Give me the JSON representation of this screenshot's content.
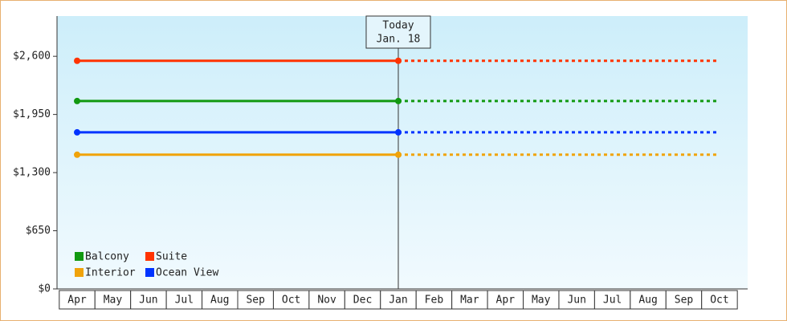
{
  "chart_data": {
    "type": "line",
    "categories": [
      "Apr",
      "May",
      "Jun",
      "Jul",
      "Aug",
      "Sep",
      "Oct",
      "Nov",
      "Dec",
      "Jan",
      "Feb",
      "Mar",
      "Apr",
      "May",
      "Jun",
      "Jul",
      "Aug",
      "Sep",
      "Oct"
    ],
    "series": [
      {
        "name": "Balcony",
        "color": "#119911",
        "values": [
          2100,
          2100,
          2100,
          2100,
          2100,
          2100,
          2100,
          2100,
          2100,
          2100,
          2100,
          2100,
          2100,
          2100,
          2100,
          2100,
          2100,
          2100,
          2100
        ]
      },
      {
        "name": "Suite",
        "color": "#ff3300",
        "values": [
          2550,
          2550,
          2550,
          2550,
          2550,
          2550,
          2550,
          2550,
          2550,
          2550,
          2550,
          2550,
          2550,
          2550,
          2550,
          2550,
          2550,
          2550,
          2550
        ]
      },
      {
        "name": "Interior",
        "color": "#f0a30a",
        "values": [
          1500,
          1500,
          1500,
          1500,
          1500,
          1500,
          1500,
          1500,
          1500,
          1500,
          1500,
          1500,
          1500,
          1500,
          1500,
          1500,
          1500,
          1500,
          1500
        ]
      },
      {
        "name": "Ocean View",
        "color": "#0033ff",
        "values": [
          1750,
          1750,
          1750,
          1750,
          1750,
          1750,
          1750,
          1750,
          1750,
          1750,
          1750,
          1750,
          1750,
          1750,
          1750,
          1750,
          1750,
          1750,
          1750
        ]
      }
    ],
    "ylim": [
      0,
      3050
    ],
    "yticks": [
      {
        "value": 0,
        "label": "$0"
      },
      {
        "value": 650,
        "label": "$650"
      },
      {
        "value": 1300,
        "label": "$1,300"
      },
      {
        "value": 1950,
        "label": "$1,950"
      },
      {
        "value": 2600,
        "label": "$2,600"
      }
    ],
    "today": {
      "label": "Today",
      "date": "Jan. 18"
    }
  }
}
